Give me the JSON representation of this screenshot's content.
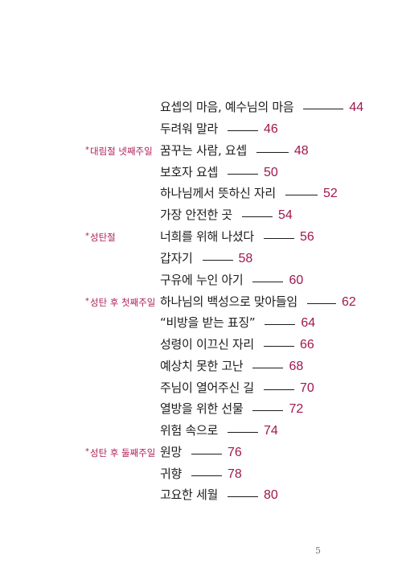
{
  "sections": [
    {
      "label": "대림절 넷째주일"
    },
    {
      "label": "성탄절"
    },
    {
      "label": "성탄 후 첫째주일"
    },
    {
      "label": "성탄 후 둘째주일"
    }
  ],
  "entries": [
    {
      "title": "요셉의 마음, 예수님의 마음",
      "page": "44"
    },
    {
      "title": "두려워 말라",
      "page": "46"
    },
    {
      "title": "꿈꾸는 사람, 요셉",
      "page": "48"
    },
    {
      "title": "보호자 요셉",
      "page": "50"
    },
    {
      "title": "하나님께서 뜻하신 자리",
      "page": "52"
    },
    {
      "title": "가장 안전한 곳",
      "page": "54"
    },
    {
      "title": "너희를 위해 나셨다",
      "page": "56"
    },
    {
      "title": "갑자기",
      "page": "58"
    },
    {
      "title": "구유에 누인 아기",
      "page": "60"
    },
    {
      "title": "하나님의 백성으로 맞아들임",
      "page": "62"
    },
    {
      "title": "“비방을 받는 표징”",
      "page": "64"
    },
    {
      "title": "성령이 이끄신 자리",
      "page": "66"
    },
    {
      "title": "예상치 못한 고난",
      "page": "68"
    },
    {
      "title": "주님이 열어주신 길",
      "page": "70"
    },
    {
      "title": "열방을 위한 선물",
      "page": "72"
    },
    {
      "title": "위험 속으로",
      "page": "74"
    },
    {
      "title": "원망",
      "page": "76"
    },
    {
      "title": "귀향",
      "page": "78"
    },
    {
      "title": "고요한 세월",
      "page": "80"
    }
  ],
  "section_marker": "*",
  "folio": "5",
  "colors": {
    "accent": "#a0174e",
    "text": "#1c1c1c"
  }
}
